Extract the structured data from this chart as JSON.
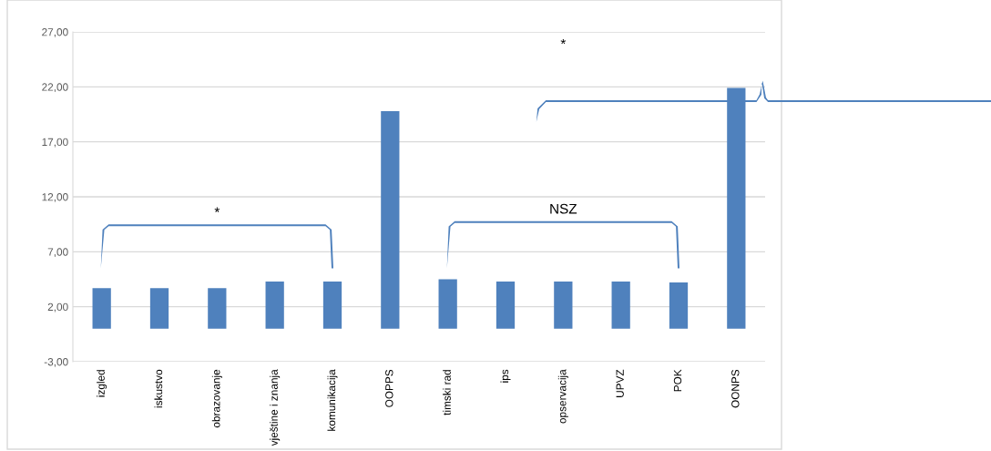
{
  "chart_data": {
    "type": "bar",
    "categories": [
      "izgled",
      "iskustvo",
      "obrazovanje",
      "vještine i znanja",
      "komunikacija",
      "OOPPS",
      "timski rad",
      "ips",
      "opservacija",
      "UPVZ",
      "POK",
      "OONPS"
    ],
    "values": [
      3.7,
      3.7,
      3.7,
      4.3,
      4.3,
      19.8,
      4.5,
      4.3,
      4.3,
      4.3,
      4.2,
      21.9
    ],
    "color": "#4f81bd",
    "ylim": [
      -3,
      27
    ],
    "yticks": [
      {
        "value": -3,
        "label": "-3,00"
      },
      {
        "value": 2,
        "label": "2,00"
      },
      {
        "value": 7,
        "label": "7,00"
      },
      {
        "value": 12,
        "label": "12,00"
      },
      {
        "value": 17,
        "label": "17,00"
      },
      {
        "value": 22,
        "label": "22,00"
      },
      {
        "value": 27,
        "label": "27,00"
      }
    ],
    "grid": "y",
    "annotations": [
      "*",
      "NSZ",
      "*"
    ]
  }
}
